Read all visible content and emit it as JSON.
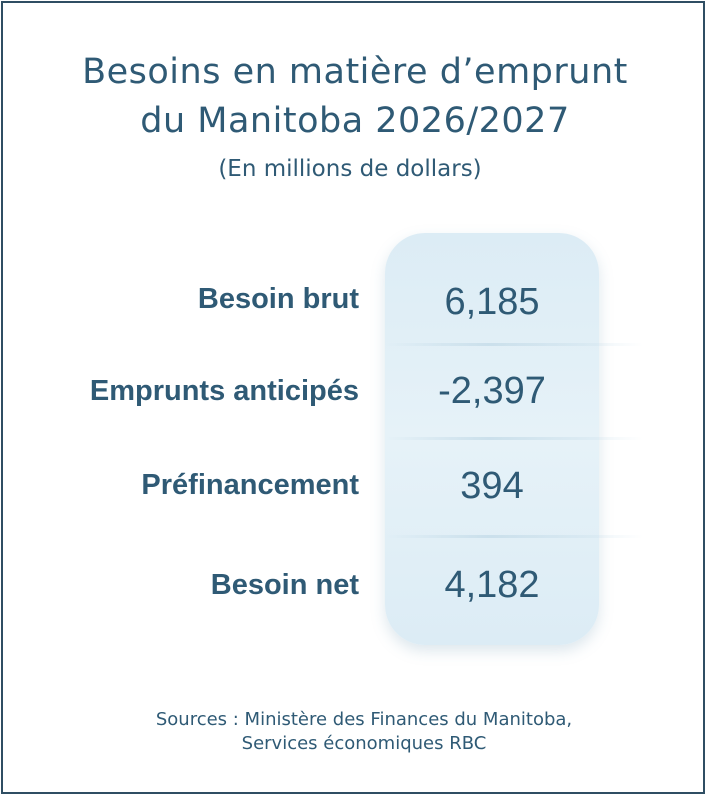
{
  "chart_data": {
    "type": "table",
    "title_line1": "Besoins en matière d’emprunt",
    "title_line2": "du Manitoba 2026/2027",
    "subtitle": "(En millions de dollars)",
    "categories": [
      "Besoin brut",
      "Emprunts anticipés",
      "Préfinancement",
      "Besoin net"
    ],
    "values": [
      6185,
      -2397,
      394,
      4182
    ],
    "value_labels": [
      "6,185",
      "-2,397",
      "394",
      "4,182"
    ]
  },
  "footer": {
    "source_line1": "Sources : Ministère des Finances du Manitoba,",
    "source_line2": "Services économiques RBC"
  },
  "colors": {
    "text": "#2f5a75",
    "border": "#2f4e63",
    "panel": "#e2eff6"
  }
}
